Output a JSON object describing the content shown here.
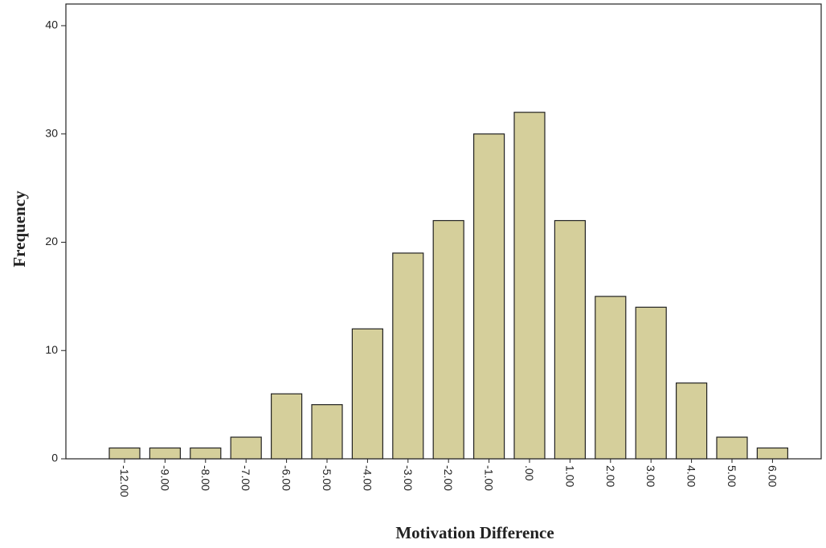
{
  "chart_data": {
    "type": "bar",
    "x_label": "Motivation Difference",
    "y_label": "Frequency",
    "categories": [
      "-12.00",
      "-9.00",
      "-8.00",
      "-7.00",
      "-6.00",
      "-5.00",
      "-4.00",
      "-3.00",
      "-2.00",
      "-1.00",
      ".00",
      "1.00",
      "2.00",
      "3.00",
      "4.00",
      "5.00",
      "6.00"
    ],
    "values": [
      1,
      1,
      1,
      2,
      6,
      5,
      12,
      19,
      22,
      30,
      32,
      22,
      15,
      14,
      7,
      2,
      1
    ],
    "color": "#d5cf9b",
    "ylim": [
      0,
      42
    ],
    "yticks": [
      0,
      10,
      20,
      30,
      40
    ]
  }
}
